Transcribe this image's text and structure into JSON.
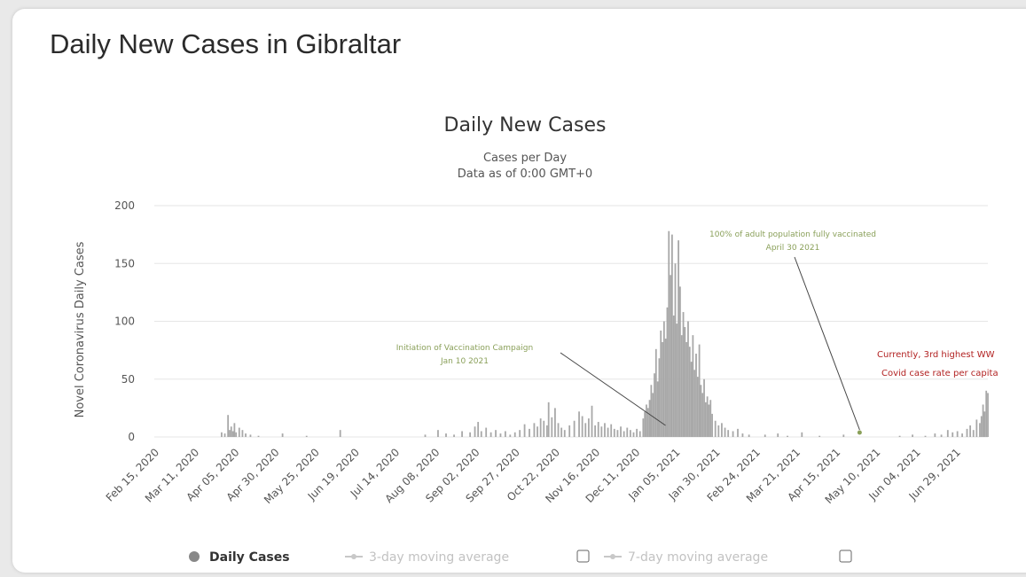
{
  "page": {
    "title": "Daily New Cases in Gibraltar"
  },
  "chart_data": {
    "type": "bar",
    "title": "Daily New Cases",
    "subtitle_line1": "Cases per Day",
    "subtitle_line2": "Data as of 0:00 GMT+0",
    "ylabel": "Novel Coronavirus Daily Cases",
    "xlabel": "",
    "ylim": [
      0,
      200
    ],
    "yticks": [
      0,
      50,
      100,
      150,
      200
    ],
    "x_start": "2020-02-15",
    "x_end": "2021-07-19",
    "grid": true,
    "xtick_labels": [
      "Feb 15, 2020",
      "Mar 11, 2020",
      "Apr 05, 2020",
      "Apr 30, 2020",
      "May 25, 2020",
      "Jun 19, 2020",
      "Jul 14, 2020",
      "Aug 08, 2020",
      "Sep 02, 2020",
      "Sep 27, 2020",
      "Oct 22, 2020",
      "Nov 16, 2020",
      "Dec 11, 2020",
      "Jan 05, 2021",
      "Jan 30, 2021",
      "Feb 24, 2021",
      "Mar 21, 2021",
      "Apr 15, 2021",
      "May 10, 2021",
      "Jun 04, 2021",
      "Jun 29, 2021"
    ],
    "bar_color": "#a8a8a8",
    "series": [
      {
        "name": "Daily Cases",
        "points": [
          [
            "2020-03-28",
            4
          ],
          [
            "2020-03-30",
            3
          ],
          [
            "2020-04-01",
            19
          ],
          [
            "2020-04-02",
            6
          ],
          [
            "2020-04-03",
            9
          ],
          [
            "2020-04-04",
            5
          ],
          [
            "2020-04-05",
            12
          ],
          [
            "2020-04-06",
            4
          ],
          [
            "2020-04-08",
            8
          ],
          [
            "2020-04-10",
            6
          ],
          [
            "2020-04-12",
            3
          ],
          [
            "2020-04-15",
            2
          ],
          [
            "2020-04-20",
            1
          ],
          [
            "2020-05-05",
            3
          ],
          [
            "2020-05-20",
            1
          ],
          [
            "2020-06-10",
            6
          ],
          [
            "2020-08-02",
            2
          ],
          [
            "2020-08-10",
            6
          ],
          [
            "2020-08-15",
            3
          ],
          [
            "2020-08-20",
            2
          ],
          [
            "2020-08-25",
            5
          ],
          [
            "2020-08-30",
            4
          ],
          [
            "2020-09-02",
            9
          ],
          [
            "2020-09-04",
            13
          ],
          [
            "2020-09-06",
            5
          ],
          [
            "2020-09-09",
            8
          ],
          [
            "2020-09-12",
            4
          ],
          [
            "2020-09-15",
            6
          ],
          [
            "2020-09-18",
            3
          ],
          [
            "2020-09-21",
            5
          ],
          [
            "2020-09-24",
            2
          ],
          [
            "2020-09-27",
            4
          ],
          [
            "2020-09-30",
            6
          ],
          [
            "2020-10-03",
            11
          ],
          [
            "2020-10-06",
            7
          ],
          [
            "2020-10-09",
            12
          ],
          [
            "2020-10-11",
            9
          ],
          [
            "2020-10-13",
            16
          ],
          [
            "2020-10-15",
            14
          ],
          [
            "2020-10-17",
            10
          ],
          [
            "2020-10-18",
            30
          ],
          [
            "2020-10-20",
            17
          ],
          [
            "2020-10-22",
            25
          ],
          [
            "2020-10-24",
            12
          ],
          [
            "2020-10-26",
            8
          ],
          [
            "2020-10-28",
            6
          ],
          [
            "2020-10-31",
            10
          ],
          [
            "2020-11-03",
            14
          ],
          [
            "2020-11-06",
            22
          ],
          [
            "2020-11-08",
            18
          ],
          [
            "2020-11-10",
            12
          ],
          [
            "2020-11-12",
            16
          ],
          [
            "2020-11-14",
            27
          ],
          [
            "2020-11-16",
            10
          ],
          [
            "2020-11-18",
            13
          ],
          [
            "2020-11-20",
            9
          ],
          [
            "2020-11-22",
            12
          ],
          [
            "2020-11-24",
            8
          ],
          [
            "2020-11-26",
            11
          ],
          [
            "2020-11-28",
            7
          ],
          [
            "2020-11-30",
            6
          ],
          [
            "2020-12-02",
            9
          ],
          [
            "2020-12-04",
            5
          ],
          [
            "2020-12-06",
            8
          ],
          [
            "2020-12-08",
            6
          ],
          [
            "2020-12-10",
            4
          ],
          [
            "2020-12-12",
            7
          ],
          [
            "2020-12-14",
            5
          ],
          [
            "2020-12-16",
            16
          ],
          [
            "2020-12-17",
            22
          ],
          [
            "2020-12-18",
            28
          ],
          [
            "2020-12-19",
            25
          ],
          [
            "2020-12-20",
            32
          ],
          [
            "2020-12-21",
            45
          ],
          [
            "2020-12-22",
            38
          ],
          [
            "2020-12-23",
            55
          ],
          [
            "2020-12-24",
            76
          ],
          [
            "2020-12-25",
            48
          ],
          [
            "2020-12-26",
            68
          ],
          [
            "2020-12-27",
            92
          ],
          [
            "2020-12-28",
            82
          ],
          [
            "2020-12-29",
            100
          ],
          [
            "2020-12-30",
            85
          ],
          [
            "2020-12-31",
            112
          ],
          [
            "2021-01-01",
            178
          ],
          [
            "2021-01-02",
            140
          ],
          [
            "2021-01-03",
            175
          ],
          [
            "2021-01-04",
            105
          ],
          [
            "2021-01-05",
            150
          ],
          [
            "2021-01-06",
            98
          ],
          [
            "2021-01-07",
            170
          ],
          [
            "2021-01-08",
            130
          ],
          [
            "2021-01-09",
            88
          ],
          [
            "2021-01-10",
            108
          ],
          [
            "2021-01-11",
            95
          ],
          [
            "2021-01-12",
            82
          ],
          [
            "2021-01-13",
            100
          ],
          [
            "2021-01-14",
            78
          ],
          [
            "2021-01-15",
            65
          ],
          [
            "2021-01-16",
            88
          ],
          [
            "2021-01-17",
            58
          ],
          [
            "2021-01-18",
            72
          ],
          [
            "2021-01-19",
            52
          ],
          [
            "2021-01-20",
            80
          ],
          [
            "2021-01-21",
            45
          ],
          [
            "2021-01-22",
            38
          ],
          [
            "2021-01-23",
            50
          ],
          [
            "2021-01-24",
            30
          ],
          [
            "2021-01-25",
            35
          ],
          [
            "2021-01-26",
            28
          ],
          [
            "2021-01-27",
            32
          ],
          [
            "2021-01-28",
            20
          ],
          [
            "2021-01-30",
            14
          ],
          [
            "2021-02-01",
            10
          ],
          [
            "2021-02-03",
            12
          ],
          [
            "2021-02-05",
            8
          ],
          [
            "2021-02-07",
            6
          ],
          [
            "2021-02-10",
            5
          ],
          [
            "2021-02-13",
            7
          ],
          [
            "2021-02-16",
            3
          ],
          [
            "2021-02-20",
            2
          ],
          [
            "2021-03-02",
            2
          ],
          [
            "2021-03-10",
            3
          ],
          [
            "2021-03-16",
            1
          ],
          [
            "2021-03-25",
            4
          ],
          [
            "2021-04-05",
            1
          ],
          [
            "2021-04-20",
            2
          ],
          [
            "2021-05-25",
            1
          ],
          [
            "2021-06-02",
            2
          ],
          [
            "2021-06-10",
            1
          ],
          [
            "2021-06-16",
            3
          ],
          [
            "2021-06-20",
            2
          ],
          [
            "2021-06-24",
            6
          ],
          [
            "2021-06-27",
            4
          ],
          [
            "2021-06-30",
            5
          ],
          [
            "2021-07-03",
            3
          ],
          [
            "2021-07-06",
            7
          ],
          [
            "2021-07-08",
            10
          ],
          [
            "2021-07-10",
            6
          ],
          [
            "2021-07-12",
            15
          ],
          [
            "2021-07-14",
            12
          ],
          [
            "2021-07-15",
            18
          ],
          [
            "2021-07-16",
            28
          ],
          [
            "2021-07-17",
            22
          ],
          [
            "2021-07-18",
            40
          ],
          [
            "2021-07-19",
            38
          ]
        ]
      },
      {
        "name": "3-day moving average",
        "points": []
      },
      {
        "name": "7-day moving average",
        "points": []
      }
    ],
    "annotations": [
      {
        "lines": [
          "Initiation of Vaccination Campaign",
          "Jan 10 2021"
        ],
        "date": "2021-01-10",
        "color": "#8aa05a"
      },
      {
        "lines": [
          "100% of adult population fully vaccinated",
          "April 30 2021"
        ],
        "date": "2021-04-30",
        "color": "#8aa05a"
      },
      {
        "lines": [
          "Currently, 3rd highest WW",
          "Covid case rate per capita"
        ],
        "color": "#b22222"
      }
    ],
    "legend": {
      "position": "bottom",
      "items": [
        {
          "label": "Daily Cases",
          "symbol": "dot",
          "color": "#888888",
          "active": true
        },
        {
          "label": "3-day moving average",
          "symbol": "line-dot",
          "color": "#c8c8c8",
          "active": false
        },
        {
          "label": "7-day moving average",
          "symbol": "line-dot",
          "color": "#c8c8c8",
          "active": false
        }
      ]
    }
  }
}
